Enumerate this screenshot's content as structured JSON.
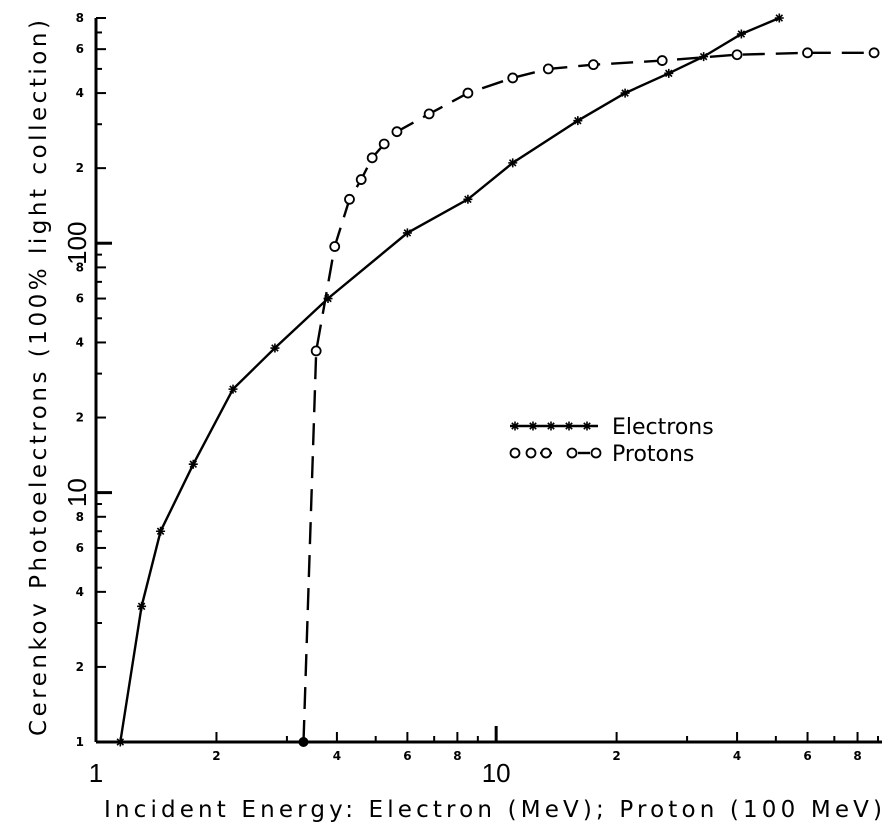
{
  "chart_data": {
    "type": "line",
    "xlabel": "Incident Energy: Electron (MeV); Proton (100 MeV)",
    "ylabel": "Cerenkov Photoelectrons (100% light collection)",
    "x_scale": "log",
    "y_scale": "log",
    "xlim": [
      1,
      90
    ],
    "ylim": [
      1,
      800
    ],
    "x_ticks": {
      "major": [
        {
          "value": 1,
          "label": "1"
        },
        {
          "value": 10,
          "label": "10"
        }
      ],
      "minor": [
        {
          "value": 2,
          "label": "2"
        },
        {
          "value": 4,
          "label": "4"
        },
        {
          "value": 6,
          "label": "6"
        },
        {
          "value": 8,
          "label": "8"
        },
        {
          "value": 20,
          "label": "2"
        },
        {
          "value": 40,
          "label": "4"
        },
        {
          "value": 60,
          "label": "6"
        },
        {
          "value": 80,
          "label": "8"
        }
      ]
    },
    "y_ticks": {
      "major": [
        {
          "value": 10,
          "label": "10"
        },
        {
          "value": 100,
          "label": "100"
        }
      ],
      "minor": [
        {
          "value": 1,
          "label": "1"
        },
        {
          "value": 2,
          "label": "2"
        },
        {
          "value": 4,
          "label": "4"
        },
        {
          "value": 6,
          "label": "6"
        },
        {
          "value": 8,
          "label": "8"
        },
        {
          "value": 20,
          "label": "2"
        },
        {
          "value": 40,
          "label": "4"
        },
        {
          "value": 60,
          "label": "6"
        },
        {
          "value": 80,
          "label": "8"
        },
        {
          "value": 200,
          "label": "2"
        },
        {
          "value": 400,
          "label": "4"
        },
        {
          "value": 600,
          "label": "6"
        },
        {
          "value": 800,
          "label": "8"
        }
      ]
    },
    "series": [
      {
        "name": "Electrons",
        "marker": "star",
        "line": "solid",
        "x": [
          1.15,
          1.3,
          1.45,
          1.75,
          2.2,
          2.8,
          3.8,
          6,
          8.5,
          11,
          16,
          21,
          27,
          33,
          41,
          51
        ],
        "y": [
          1,
          3.5,
          7,
          13,
          26,
          38,
          60,
          110,
          150,
          210,
          310,
          400,
          480,
          560,
          690,
          800
        ]
      },
      {
        "name": "Protons",
        "marker": "circle",
        "line": "dashed",
        "x": [
          3.3,
          3.55,
          3.95,
          4.3,
          4.6,
          4.9,
          5.25,
          5.65,
          6.8,
          8.5,
          11,
          13.5,
          17.5,
          26,
          40,
          60,
          88
        ],
        "y": [
          1,
          37,
          97,
          150,
          180,
          220,
          250,
          280,
          330,
          400,
          460,
          500,
          520,
          540,
          570,
          580,
          580
        ]
      }
    ],
    "legend": {
      "position": "center-right",
      "entries": [
        "Electrons",
        "Protons"
      ]
    }
  }
}
